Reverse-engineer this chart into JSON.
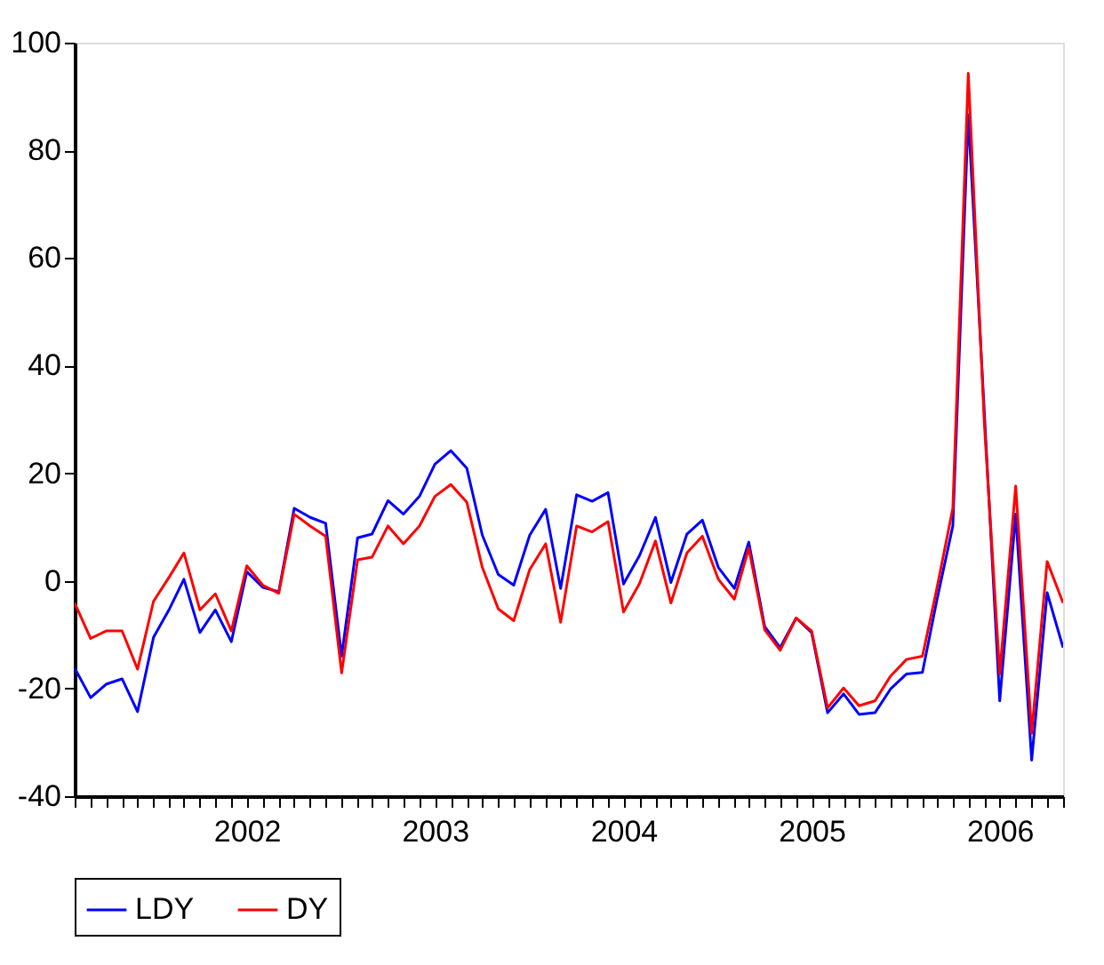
{
  "chart_data": {
    "type": "line",
    "x": [
      "2001-08",
      "2001-09",
      "2001-10",
      "2001-11",
      "2001-12",
      "2002-01",
      "2002-02",
      "2002-03",
      "2002-04",
      "2002-05",
      "2002-06",
      "2002-07",
      "2002-08",
      "2002-09",
      "2002-10",
      "2002-11",
      "2002-12",
      "2003-01",
      "2003-02",
      "2003-03",
      "2003-04",
      "2003-05",
      "2003-06",
      "2003-07",
      "2003-08",
      "2003-09",
      "2003-10",
      "2003-11",
      "2003-12",
      "2004-01",
      "2004-02",
      "2004-03",
      "2004-04",
      "2004-05",
      "2004-06",
      "2004-07",
      "2004-08",
      "2004-09",
      "2004-10",
      "2004-11",
      "2004-12",
      "2005-01",
      "2005-02",
      "2005-03",
      "2005-04",
      "2005-05",
      "2005-06",
      "2005-07",
      "2005-08",
      "2005-09",
      "2005-10",
      "2005-11",
      "2005-12",
      "2006-01",
      "2006-02",
      "2006-03",
      "2006-04",
      "2006-05",
      "2006-06",
      "2006-07",
      "2006-08",
      "2006-09",
      "2006-10",
      "2006-11"
    ],
    "series": [
      {
        "name": "LDY",
        "color": "#0000ff",
        "values": [
          -16.2,
          -21.7,
          -19.2,
          -18.2,
          -24.3,
          -10.5,
          -5.2,
          0.3,
          -9.6,
          -5.4,
          -11.3,
          1.7,
          -1.2,
          -2.0,
          13.5,
          11.8,
          10.7,
          -14.0,
          8.0,
          8.7,
          14.9,
          12.4,
          15.7,
          21.7,
          24.2,
          20.9,
          8.5,
          1.2,
          -0.8,
          8.5,
          13.3,
          -1.4,
          16.0,
          14.8,
          16.4,
          -0.6,
          4.7,
          11.8,
          -0.3,
          8.7,
          11.3,
          2.5,
          -1.4,
          7.2,
          -8.5,
          -12.4,
          -6.9,
          -9.6,
          -24.5,
          -21.0,
          -24.8,
          -24.5,
          -20.1,
          -17.3,
          -17.0,
          -3.6,
          10.2,
          86.6,
          31.6,
          -22.3,
          12.4,
          -33.3,
          -2.2,
          -12.4
        ]
      },
      {
        "name": "DY",
        "color": "#ff0000",
        "values": [
          -4.1,
          -10.7,
          -9.3,
          -9.3,
          -16.4,
          -3.8,
          0.8,
          5.2,
          -5.4,
          -2.4,
          -9.3,
          2.8,
          -0.8,
          -2.3,
          12.4,
          10.2,
          8.3,
          -17.1,
          3.9,
          4.4,
          10.2,
          6.9,
          10.2,
          15.7,
          17.9,
          14.6,
          2.5,
          -5.2,
          -7.4,
          2.1,
          6.9,
          -7.7,
          10.2,
          9.1,
          11.0,
          -5.8,
          -0.5,
          7.4,
          -4.1,
          5.2,
          8.3,
          0.3,
          -3.4,
          6.1,
          -9.1,
          -12.9,
          -6.9,
          -9.3,
          -23.6,
          -19.9,
          -23.2,
          -22.3,
          -17.7,
          -14.6,
          -14.0,
          -1.4,
          13.5,
          94.3,
          29.5,
          -17.3,
          17.6,
          -28.3,
          3.6,
          -4.1
        ]
      }
    ],
    "xlim": [
      "2001-08",
      "2006-11"
    ],
    "xticks": [
      {
        "value": "2001-08",
        "label": null
      },
      {
        "value": "2001-09",
        "label": null
      },
      {
        "value": "2001-10",
        "label": null
      },
      {
        "value": "2001-11",
        "label": null
      },
      {
        "value": "2001-12",
        "label": null
      },
      {
        "value": "2002-01",
        "label": null
      },
      {
        "value": "2002-02",
        "label": null
      },
      {
        "value": "2002-03",
        "label": null
      },
      {
        "value": "2002-04",
        "label": null
      },
      {
        "value": "2002-05",
        "label": null
      },
      {
        "value": "2002-06",
        "label": null
      },
      {
        "value": "2002-07",
        "label": "2002"
      },
      {
        "value": "2002-08",
        "label": null
      },
      {
        "value": "2002-09",
        "label": null
      },
      {
        "value": "2002-10",
        "label": null
      },
      {
        "value": "2002-11",
        "label": null
      },
      {
        "value": "2002-12",
        "label": null
      },
      {
        "value": "2003-01",
        "label": null
      },
      {
        "value": "2003-02",
        "label": null
      },
      {
        "value": "2003-03",
        "label": null
      },
      {
        "value": "2003-04",
        "label": null
      },
      {
        "value": "2003-05",
        "label": null
      },
      {
        "value": "2003-06",
        "label": null
      },
      {
        "value": "2003-07",
        "label": "2003"
      },
      {
        "value": "2003-08",
        "label": null
      },
      {
        "value": "2003-09",
        "label": null
      },
      {
        "value": "2003-10",
        "label": null
      },
      {
        "value": "2003-11",
        "label": null
      },
      {
        "value": "2003-12",
        "label": null
      },
      {
        "value": "2004-01",
        "label": null
      },
      {
        "value": "2004-02",
        "label": null
      },
      {
        "value": "2004-03",
        "label": null
      },
      {
        "value": "2004-04",
        "label": null
      },
      {
        "value": "2004-05",
        "label": null
      },
      {
        "value": "2004-06",
        "label": null
      },
      {
        "value": "2004-07",
        "label": "2004"
      },
      {
        "value": "2004-08",
        "label": null
      },
      {
        "value": "2004-09",
        "label": null
      },
      {
        "value": "2004-10",
        "label": null
      },
      {
        "value": "2004-11",
        "label": null
      },
      {
        "value": "2004-12",
        "label": null
      },
      {
        "value": "2005-01",
        "label": null
      },
      {
        "value": "2005-02",
        "label": null
      },
      {
        "value": "2005-03",
        "label": null
      },
      {
        "value": "2005-04",
        "label": null
      },
      {
        "value": "2005-05",
        "label": null
      },
      {
        "value": "2005-06",
        "label": null
      },
      {
        "value": "2005-07",
        "label": "2005"
      },
      {
        "value": "2005-08",
        "label": null
      },
      {
        "value": "2005-09",
        "label": null
      },
      {
        "value": "2005-10",
        "label": null
      },
      {
        "value": "2005-11",
        "label": null
      },
      {
        "value": "2005-12",
        "label": null
      },
      {
        "value": "2006-01",
        "label": null
      },
      {
        "value": "2006-02",
        "label": null
      },
      {
        "value": "2006-03",
        "label": null
      },
      {
        "value": "2006-04",
        "label": null
      },
      {
        "value": "2006-05",
        "label": null
      },
      {
        "value": "2006-06",
        "label": null
      },
      {
        "value": "2006-07",
        "label": "2006"
      },
      {
        "value": "2006-08",
        "label": null
      },
      {
        "value": "2006-09",
        "label": null
      },
      {
        "value": "2006-10",
        "label": null
      },
      {
        "value": "2006-11",
        "label": null
      }
    ],
    "ylim": [
      -40,
      100
    ],
    "yticks": [
      -40,
      -20,
      0,
      20,
      40,
      60,
      80,
      100
    ],
    "grid": false,
    "legend": "bottom",
    "marker": "none",
    "line_style": "solid"
  }
}
